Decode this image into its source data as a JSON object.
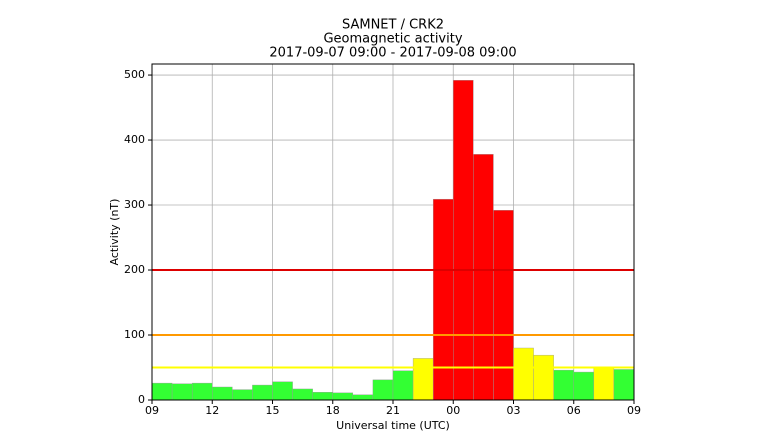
{
  "chart_data": {
    "type": "histogram",
    "title": "SAMNET / CRK2",
    "subtitle": "Geomagnetic activity",
    "period": "2017-09-07 09:00 - 2017-09-08 09:00",
    "xlabel": "Universal time (UTC)",
    "ylabel": "Activity (nT)",
    "bins": [
      0,
      1,
      2,
      3,
      4,
      5,
      6,
      7,
      8,
      9,
      10,
      11,
      12,
      13,
      14,
      15,
      16,
      17,
      18,
      19,
      20,
      21,
      22,
      23,
      24
    ],
    "values": [
      26,
      25,
      26,
      20,
      16,
      23,
      28,
      17,
      12,
      11,
      8,
      31,
      45,
      64,
      309,
      492,
      378,
      292,
      80,
      69,
      46,
      43,
      49,
      47
    ],
    "colors": [
      "#33ff33",
      "#33ff33",
      "#33ff33",
      "#33ff33",
      "#33ff33",
      "#33ff33",
      "#33ff33",
      "#33ff33",
      "#33ff33",
      "#33ff33",
      "#33ff33",
      "#33ff33",
      "#33ff33",
      "#ffff00",
      "#ff0000",
      "#ff0000",
      "#ff0000",
      "#ff0000",
      "#ffff00",
      "#ffff00",
      "#33ff33",
      "#33ff33",
      "#ffff00",
      "#33ff33"
    ],
    "thresholds": [
      {
        "value": 50,
        "color": "#ffff00"
      },
      {
        "value": 100,
        "color": "#ff9900"
      },
      {
        "value": 200,
        "color": "#dd0000"
      }
    ],
    "xlim": [
      0,
      24
    ],
    "xticks": [
      {
        "value": 0,
        "label": "09"
      },
      {
        "value": 3,
        "label": "12"
      },
      {
        "value": 6,
        "label": "15"
      },
      {
        "value": 9,
        "label": "18"
      },
      {
        "value": 12,
        "label": "21"
      },
      {
        "value": 15,
        "label": "00"
      },
      {
        "value": 18,
        "label": "03"
      },
      {
        "value": 21,
        "label": "06"
      },
      {
        "value": 24,
        "label": "09"
      }
    ],
    "ylim": [
      0,
      517
    ],
    "yticks": [
      0,
      100,
      200,
      300,
      400,
      500
    ],
    "grid": true
  }
}
